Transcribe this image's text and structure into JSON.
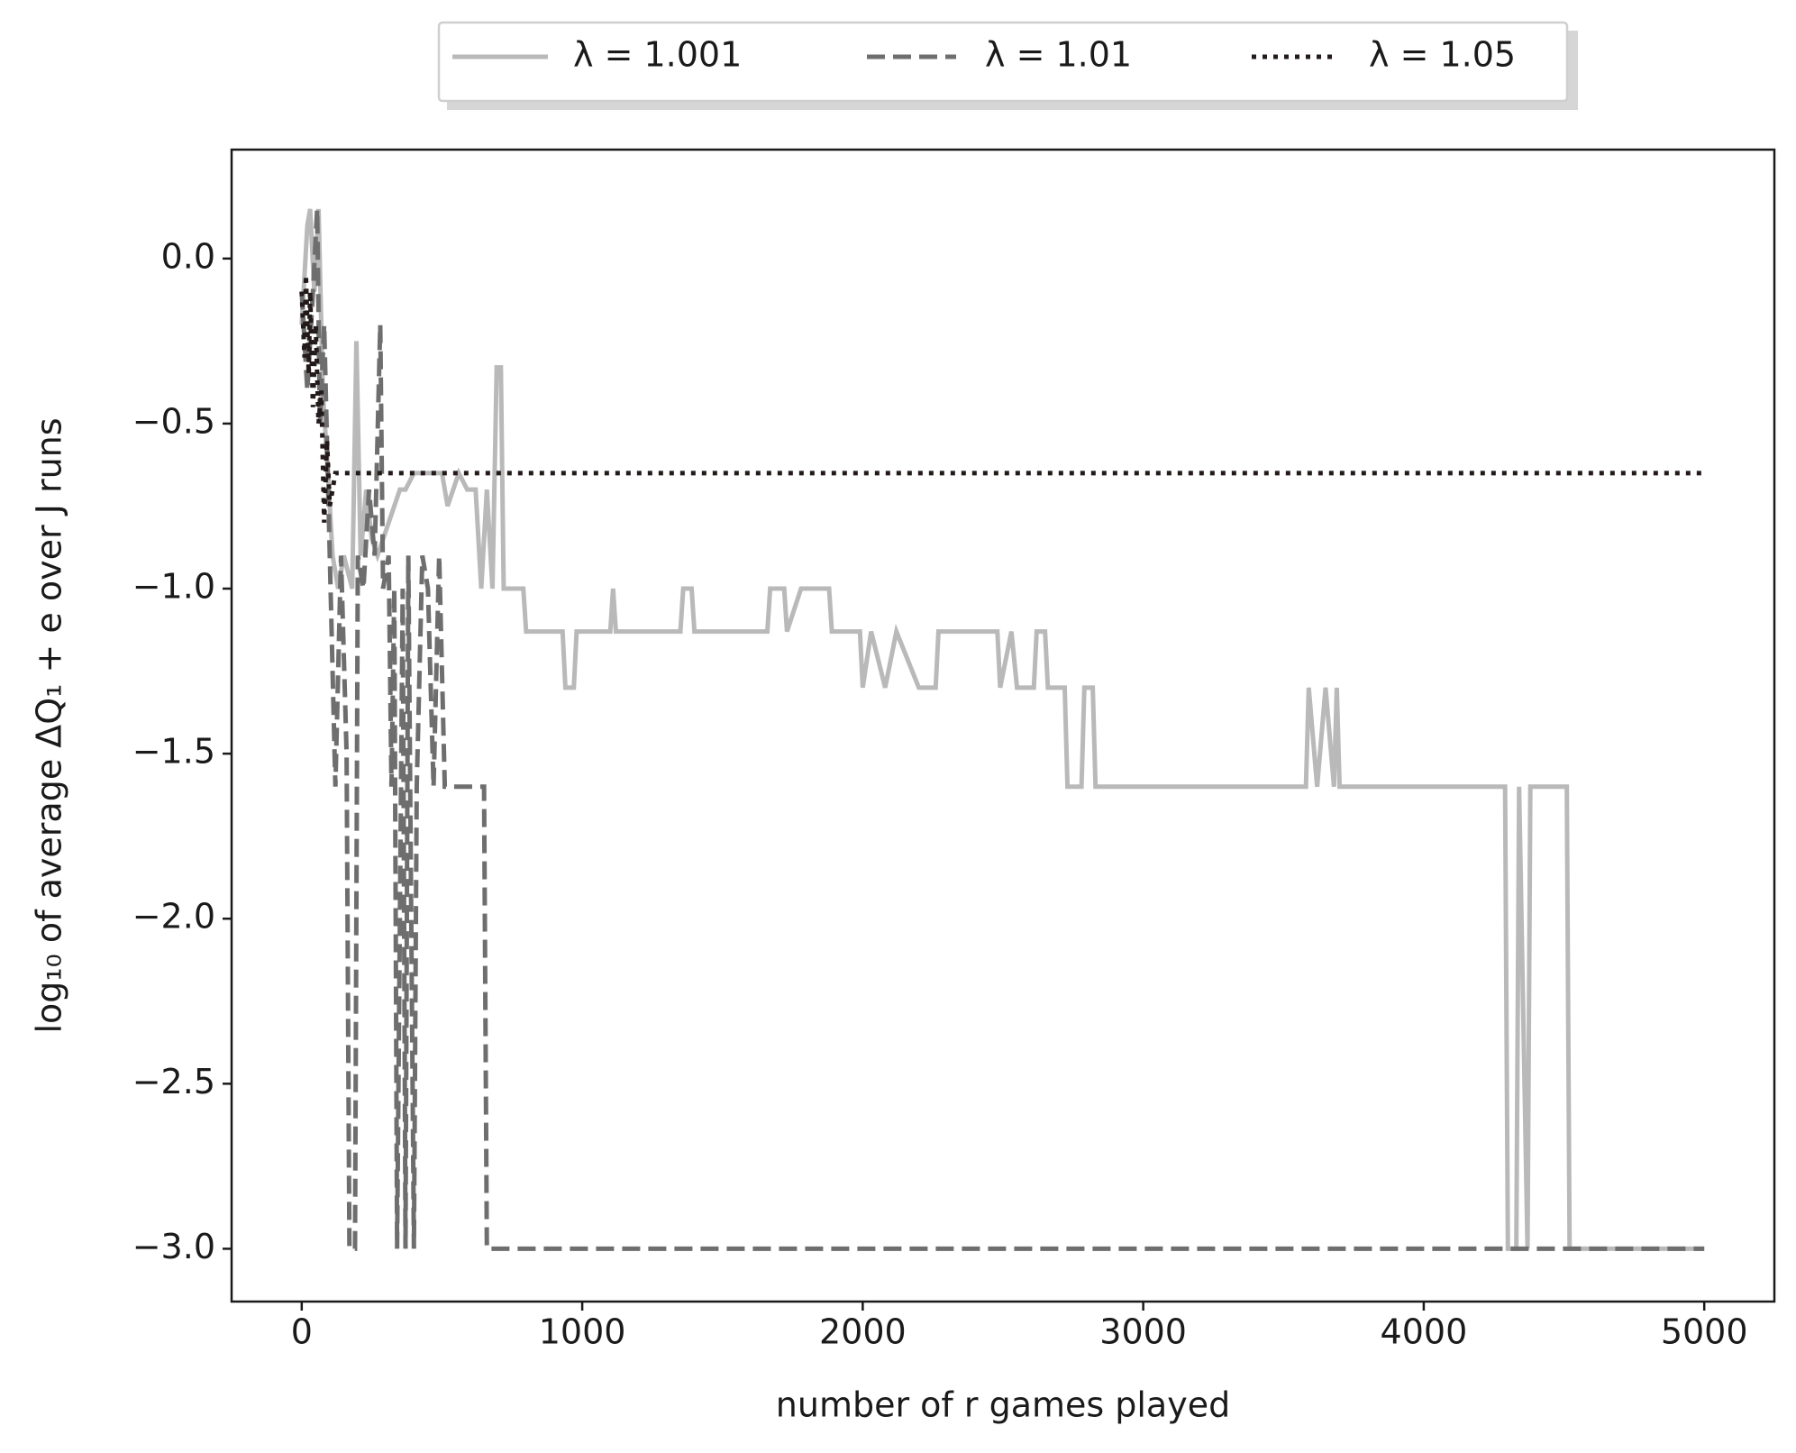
{
  "chart_data": {
    "type": "line",
    "xlabel": "number of r games played",
    "ylabel": "log₁₀ of average ΔQ₁ + e over J runs",
    "xlim": [
      -250,
      5250
    ],
    "ylim": [
      -3.16,
      0.33
    ],
    "xticks": [
      0,
      1000,
      2000,
      3000,
      4000,
      5000
    ],
    "yticks": [
      {
        "value": 0,
        "label": "0.0"
      },
      {
        "value": -0.5,
        "label": "−0.5"
      },
      {
        "value": -1,
        "label": "−1.0"
      },
      {
        "value": -1.5,
        "label": "−1.5"
      },
      {
        "value": -2,
        "label": "−2.0"
      },
      {
        "value": -2.5,
        "label": "−2.5"
      },
      {
        "value": -3,
        "label": "−3.0"
      }
    ],
    "legend": "upper center outside",
    "series": [
      {
        "name": "λ = 1.001",
        "color": "#b9b9b9",
        "dash": "solid",
        "x": [
          0,
          20,
          30,
          45,
          60,
          75,
          90,
          110,
          130,
          150,
          180,
          195,
          210,
          230,
          250,
          270,
          290,
          310,
          330,
          350,
          370,
          400,
          450,
          500,
          520,
          560,
          590,
          620,
          640,
          660,
          680,
          695,
          710,
          720,
          790,
          800,
          930,
          940,
          970,
          980,
          1100,
          1110,
          1120,
          1350,
          1360,
          1390,
          1400,
          1660,
          1670,
          1720,
          1730,
          1780,
          1880,
          1890,
          1990,
          2000,
          2030,
          2080,
          2120,
          2200,
          2260,
          2270,
          2480,
          2490,
          2530,
          2550,
          2610,
          2620,
          2650,
          2660,
          2720,
          2730,
          2780,
          2790,
          2820,
          2830,
          3580,
          3590,
          3620,
          3650,
          3680,
          3690,
          3700,
          4290,
          4300,
          4330,
          4340,
          4370,
          4380,
          4510,
          4520,
          5000
        ],
        "values": [
          -0.2,
          0.1,
          0.15,
          -0.1,
          0.15,
          -0.4,
          -0.6,
          -0.9,
          -1.0,
          -0.9,
          -1.0,
          -0.25,
          -0.9,
          -0.7,
          -0.85,
          -0.9,
          -0.85,
          -0.8,
          -0.75,
          -0.7,
          -0.7,
          -0.65,
          -0.65,
          -0.65,
          -0.75,
          -0.65,
          -0.7,
          -0.7,
          -1.0,
          -0.7,
          -1.0,
          -0.33,
          -0.33,
          -1.0,
          -1.0,
          -1.13,
          -1.13,
          -1.3,
          -1.3,
          -1.13,
          -1.13,
          -1.0,
          -1.13,
          -1.13,
          -1.0,
          -1.0,
          -1.13,
          -1.13,
          -1.0,
          -1.0,
          -1.13,
          -1.0,
          -1.0,
          -1.13,
          -1.13,
          -1.3,
          -1.13,
          -1.3,
          -1.13,
          -1.3,
          -1.3,
          -1.13,
          -1.13,
          -1.3,
          -1.13,
          -1.3,
          -1.3,
          -1.13,
          -1.13,
          -1.3,
          -1.3,
          -1.6,
          -1.6,
          -1.3,
          -1.3,
          -1.6,
          -1.6,
          -1.3,
          -1.6,
          -1.3,
          -1.6,
          -1.3,
          -1.6,
          -1.6,
          -3.0,
          -3.0,
          -1.6,
          -3.0,
          -1.6,
          -1.6,
          -3.0,
          -3.0
        ]
      },
      {
        "name": "λ = 1.01",
        "color": "#6e6e6e",
        "dash": "dashed",
        "x": [
          0,
          20,
          40,
          55,
          65,
          80,
          100,
          120,
          140,
          160,
          170,
          190,
          200,
          220,
          240,
          260,
          280,
          290,
          310,
          320,
          330,
          340,
          360,
          370,
          380,
          400,
          410,
          430,
          450,
          470,
          490,
          510,
          650,
          660,
          5000
        ],
        "values": [
          -0.1,
          -0.4,
          -0.1,
          0.15,
          -0.5,
          -0.2,
          -0.9,
          -1.6,
          -0.9,
          -1.5,
          -3.0,
          -3.0,
          -0.9,
          -1.0,
          -0.7,
          -0.9,
          -0.2,
          -1.0,
          -0.9,
          -1.6,
          -1.0,
          -3.0,
          -1.0,
          -3.0,
          -0.9,
          -3.0,
          -1.6,
          -0.9,
          -1.0,
          -1.6,
          -0.9,
          -1.6,
          -1.6,
          -3.0,
          -3.0
        ]
      },
      {
        "name": "λ = 1.05",
        "color": "#231a1a",
        "dash": "dotted",
        "x": [
          0,
          10,
          15,
          25,
          30,
          40,
          50,
          60,
          70,
          80,
          90,
          100,
          120,
          5000
        ],
        "values": [
          -0.1,
          -0.3,
          -0.05,
          -0.35,
          -0.1,
          -0.45,
          -0.2,
          -0.5,
          -0.4,
          -0.8,
          -0.55,
          -0.75,
          -0.65,
          -0.65
        ]
      }
    ]
  }
}
